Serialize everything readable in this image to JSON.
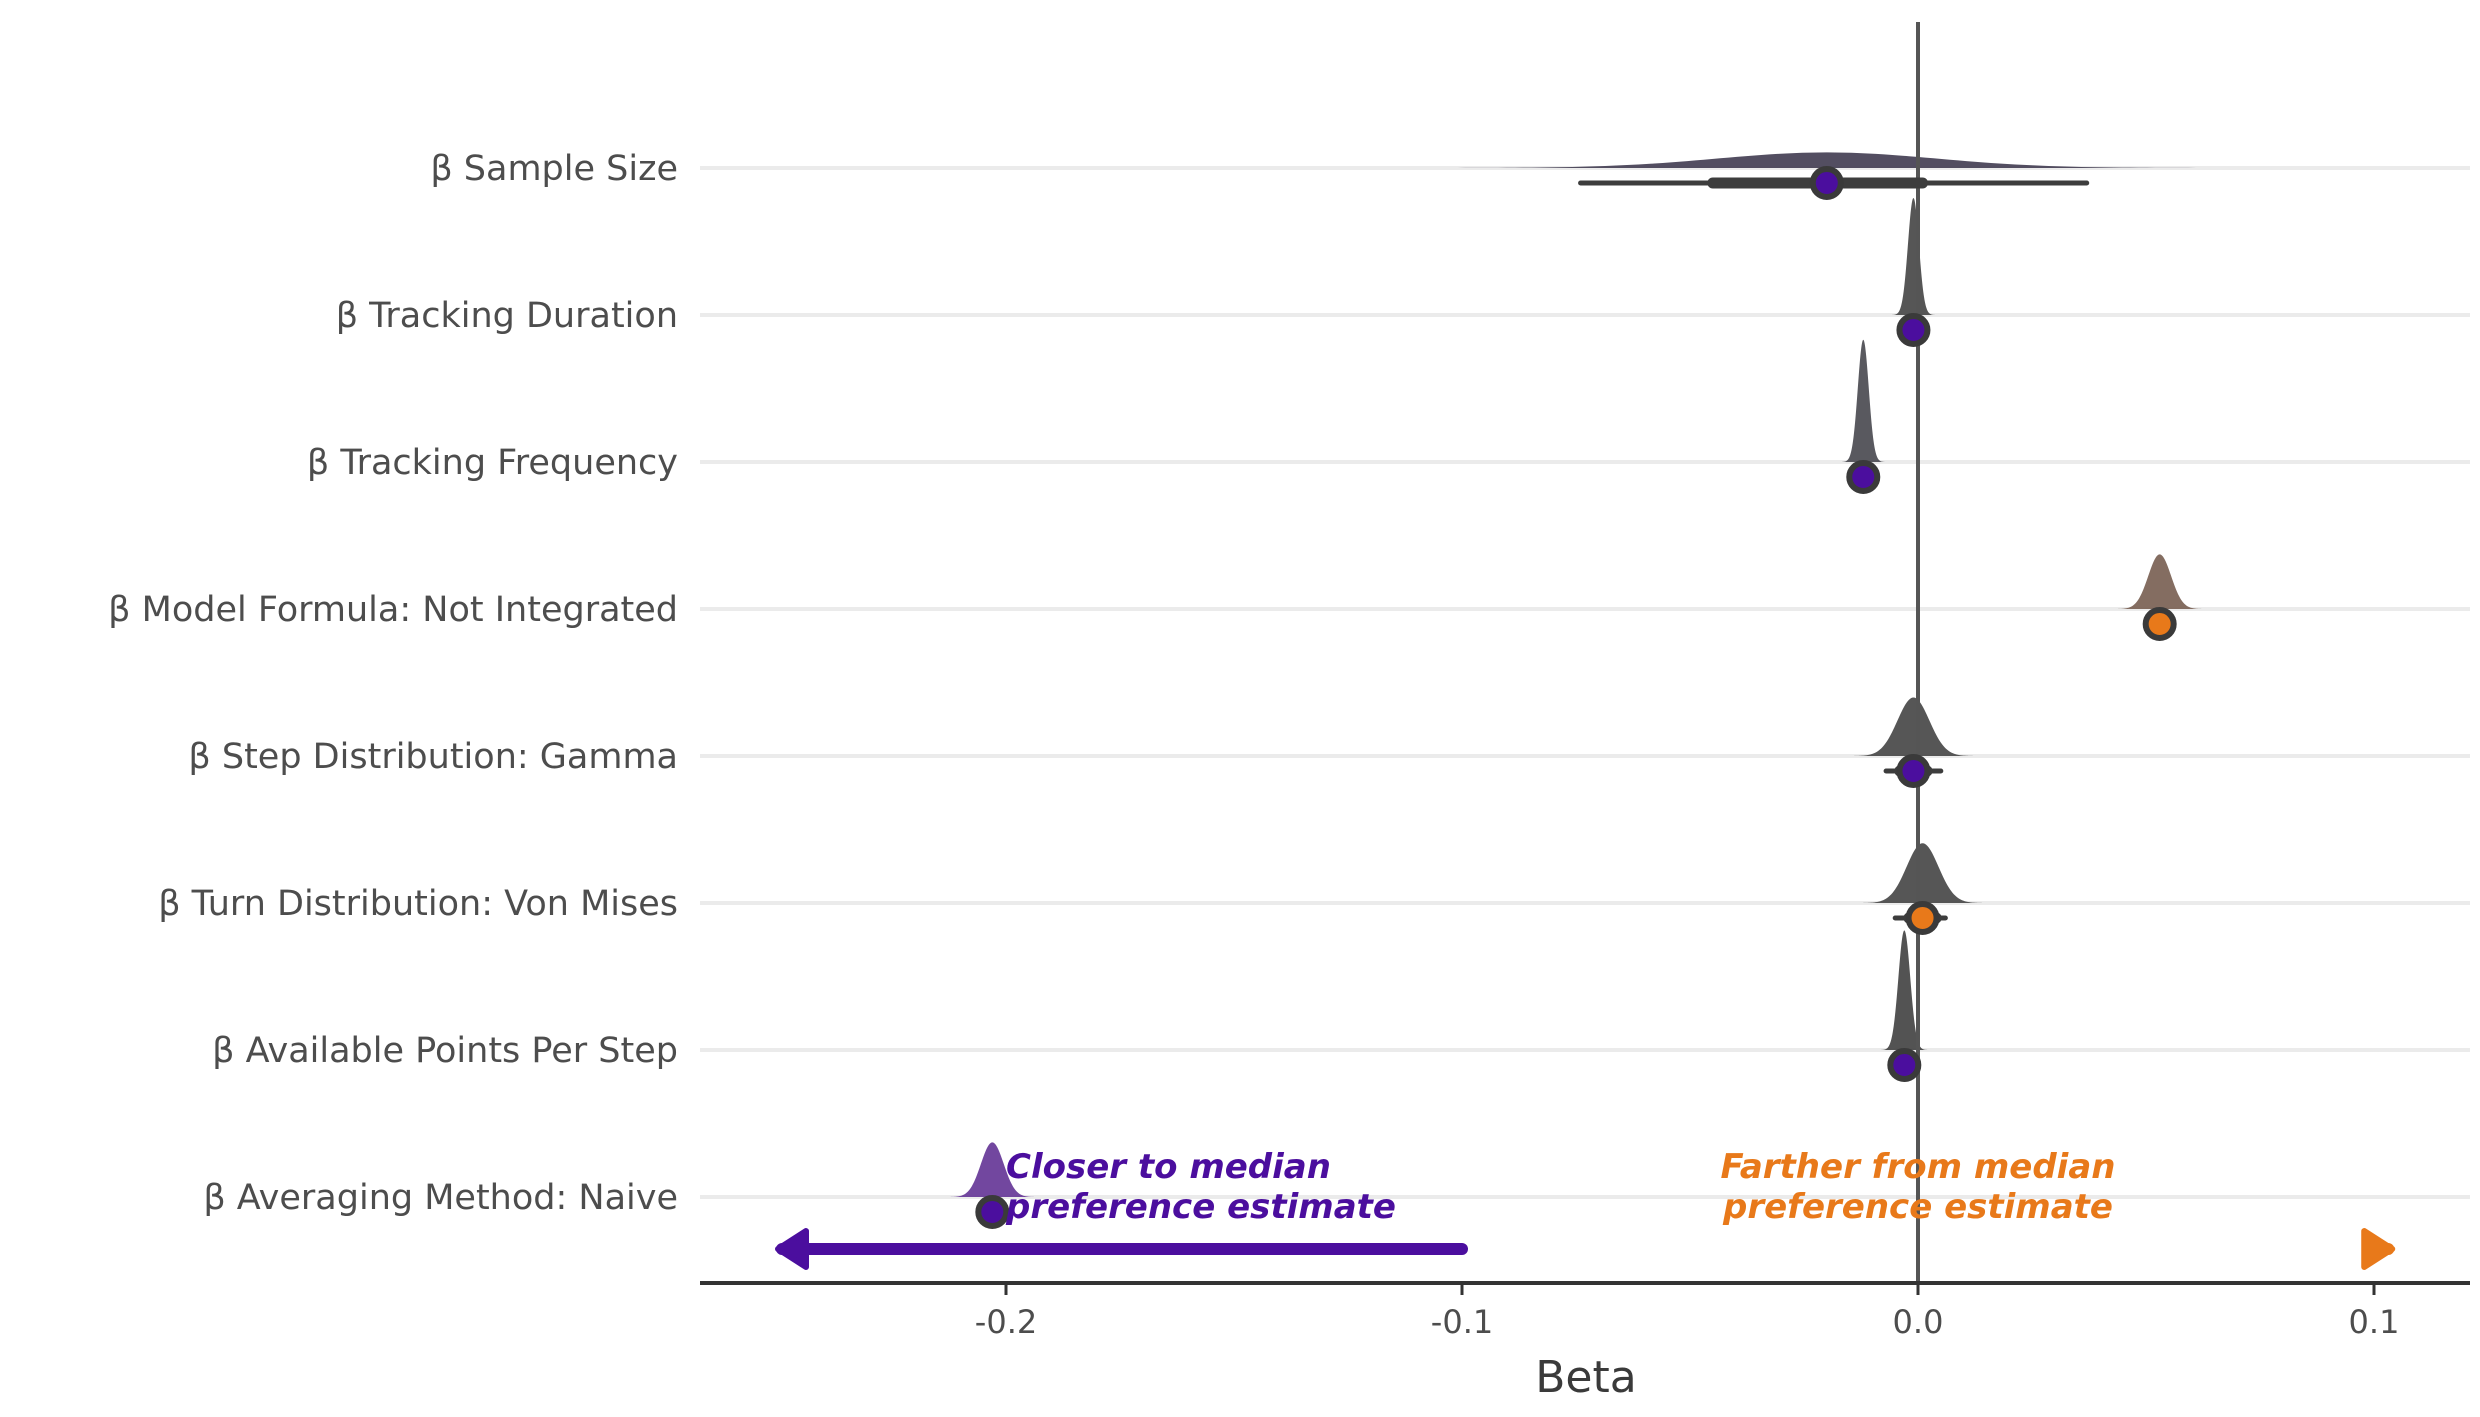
{
  "chart_data": {
    "type": "halfeye",
    "xlabel": "Beta",
    "xlim": [
      -0.268,
      0.122
    ],
    "x_ticks": [
      -0.2,
      -0.1,
      0.0,
      0.1
    ],
    "x_tick_labels": [
      "-0.2",
      "-0.1",
      "0.0",
      "0.1"
    ],
    "reference_line": 0.0,
    "grid": "horizontal-only",
    "colors": {
      "closer": "#4b0e9e",
      "farther": "#e8791a",
      "interval": "#3d3d3d",
      "axis": "#333333",
      "grid": "#ebebeb"
    },
    "terms": [
      {
        "label": "β Sample Size",
        "median": -0.02,
        "q66": [
          -0.045,
          0.001
        ],
        "q95": [
          -0.074,
          0.037
        ],
        "sd": 0.024,
        "peak": 0.12,
        "density_color": "#4a4458",
        "point_color": "#4b0e9e"
      },
      {
        "label": "β Tracking Duration",
        "median": -0.001,
        "q66": [
          -0.0022,
          0.0002
        ],
        "q95": [
          -0.0035,
          0.0013
        ],
        "sd": 0.0012,
        "peak": 0.9,
        "density_color": "#4d4d4d",
        "point_color": "#4b0e9e"
      },
      {
        "label": "β Tracking Frequency",
        "median": -0.012,
        "q66": [
          -0.0132,
          -0.0108
        ],
        "q95": [
          -0.0145,
          -0.0095
        ],
        "sd": 0.0012,
        "peak": 0.94,
        "density_color": "#505056",
        "point_color": "#4b0e9e"
      },
      {
        "label": "β Model Formula: Not Integrated",
        "median": 0.053,
        "q66": [
          0.0515,
          0.0545
        ],
        "q95": [
          0.05,
          0.056
        ],
        "sd": 0.0025,
        "peak": 0.42,
        "density_color": "#7d6558",
        "point_color": "#e8791a"
      },
      {
        "label": "β Step Distribution: Gamma",
        "median": -0.001,
        "q66": [
          -0.004,
          0.002
        ],
        "q95": [
          -0.007,
          0.005
        ],
        "sd": 0.0035,
        "peak": 0.45,
        "density_color": "#4d4d4d",
        "point_color": "#4b0e9e"
      },
      {
        "label": "β Turn Distribution: Von Mises",
        "median": 0.001,
        "q66": [
          -0.002,
          0.004
        ],
        "q95": [
          -0.005,
          0.006
        ],
        "sd": 0.0035,
        "peak": 0.46,
        "density_color": "#4d4d4d",
        "point_color": "#e8791a"
      },
      {
        "label": "β Available Points Per Step",
        "median": -0.003,
        "q66": [
          -0.0042,
          -0.0018
        ],
        "q95": [
          -0.0055,
          -0.0005
        ],
        "sd": 0.0013,
        "peak": 0.92,
        "density_color": "#4a4a4a",
        "point_color": "#4b0e9e"
      },
      {
        "label": "β Averaging Method: Naive",
        "median": -0.203,
        "q66": [
          -0.2045,
          -0.2015
        ],
        "q95": [
          -0.206,
          -0.2
        ],
        "sd": 0.0025,
        "peak": 0.42,
        "density_color": "#6a3d9a",
        "point_color": "#4b0e9e"
      }
    ],
    "annotations": [
      {
        "lines": [
          "Closer to median",
          "preference estimate"
        ],
        "color": "#4b0e9e",
        "anchor_x": -0.2,
        "align": "start",
        "arrow_from": -0.1,
        "arrow_to": -0.25
      },
      {
        "lines": [
          "Farther from median",
          "preference estimate"
        ],
        "color": "#e8791a",
        "anchor_x": 0.0,
        "align": "middle",
        "arrow_from": 0.0997,
        "arrow_to": 0.104
      }
    ]
  }
}
